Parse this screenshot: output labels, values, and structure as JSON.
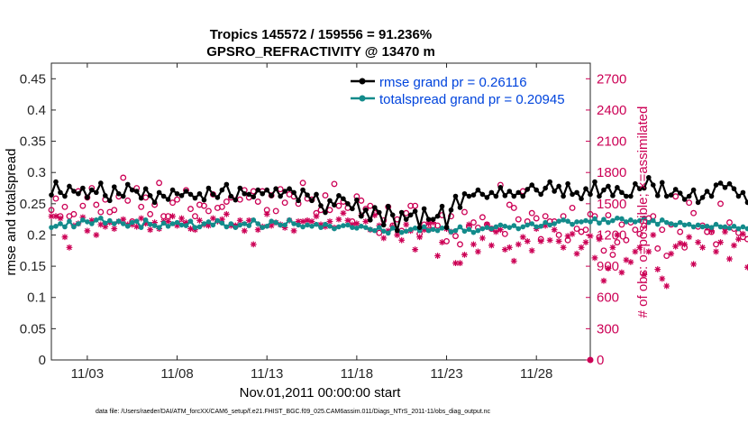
{
  "chart_data": {
    "type": "line",
    "title_line1": "Tropics 145572 / 159556 = 91.236%",
    "title_line2": "GPSRO_REFRACTIVITY @ 13470 m",
    "xlabel": "Nov.01,2011 00:00:00 start",
    "ylabel_left": "rmse and totalspread",
    "ylabel_right": "# of obs: o=possible; ×=assimilated",
    "footnote": "data file: /Users/raeder/DAI/ATM_forcXX/CAM6_setup/f.e21.FHIST_BGC.f09_025.CAM6assim.011/Diags_NTrS_2011-11/obs_diag_output.nc",
    "xlim": [
      1,
      31
    ],
    "x_ticks": [
      3,
      8,
      13,
      18,
      23,
      28
    ],
    "x_tick_labels": [
      "11/03",
      "11/08",
      "11/13",
      "11/18",
      "11/23",
      "11/28"
    ],
    "ylim_left": [
      0,
      0.475
    ],
    "y_ticks_left": [
      0,
      0.05,
      0.1,
      0.15,
      0.2,
      0.25,
      0.3,
      0.35,
      0.4,
      0.45
    ],
    "y_tick_labels_left": [
      "0",
      "0.05",
      "0.1",
      "0.15",
      "0.2",
      "0.25",
      "0.3",
      "0.35",
      "0.4",
      "0.45"
    ],
    "ylim_right": [
      0,
      2850
    ],
    "y_ticks_right": [
      0,
      300,
      600,
      900,
      1200,
      1500,
      1800,
      2100,
      2400,
      2700
    ],
    "y_tick_labels_right": [
      "0",
      "300",
      "600",
      "900",
      "1200",
      "1500",
      "1800",
      "2100",
      "2400",
      "2700"
    ],
    "legend": {
      "rmse_label": "rmse grand pr = 0.26116",
      "spread_label": "totalspread grand pr = 0.20945",
      "placement": "top-right"
    },
    "colors": {
      "rmse": "#000000",
      "spread": "#138b8b",
      "obs": "#cc0055",
      "axis": "#262626"
    },
    "x_start": 1.0,
    "x_step": 0.25,
    "series": [
      {
        "name": "rmse",
        "values": [
          0.264,
          0.285,
          0.268,
          0.262,
          0.278,
          0.27,
          0.266,
          0.275,
          0.26,
          0.272,
          0.268,
          0.283,
          0.263,
          0.255,
          0.277,
          0.266,
          0.262,
          0.281,
          0.272,
          0.27,
          0.259,
          0.274,
          0.263,
          0.252,
          0.268,
          0.262,
          0.257,
          0.272,
          0.266,
          0.263,
          0.27,
          0.265,
          0.259,
          0.266,
          0.256,
          0.275,
          0.265,
          0.26,
          0.272,
          0.281,
          0.262,
          0.256,
          0.275,
          0.266,
          0.265,
          0.261,
          0.272,
          0.266,
          0.272,
          0.263,
          0.274,
          0.262,
          0.27,
          0.274,
          0.268,
          0.255,
          0.272,
          0.264,
          0.255,
          0.265,
          0.247,
          0.236,
          0.255,
          0.248,
          0.263,
          0.258,
          0.25,
          0.242,
          0.256,
          0.23,
          0.24,
          0.224,
          0.244,
          0.236,
          0.216,
          0.246,
          0.232,
          0.207,
          0.236,
          0.225,
          0.232,
          0.238,
          0.212,
          0.242,
          0.225,
          0.225,
          0.23,
          0.246,
          0.212,
          0.24,
          0.262,
          0.244,
          0.266,
          0.262,
          0.264,
          0.272,
          0.265,
          0.26,
          0.268,
          0.262,
          0.276,
          0.263,
          0.27,
          0.262,
          0.268,
          0.262,
          0.273,
          0.28,
          0.272,
          0.265,
          0.275,
          0.285,
          0.27,
          0.278,
          0.262,
          0.282,
          0.265,
          0.268,
          0.258,
          0.274,
          0.265,
          0.285,
          0.262,
          0.272,
          0.278,
          0.263,
          0.276,
          0.268,
          0.262,
          0.262,
          0.282,
          0.274,
          0.275,
          0.292,
          0.28,
          0.263,
          0.284,
          0.262,
          0.264,
          0.273,
          0.267,
          0.257,
          0.262,
          0.272,
          0.252,
          0.26,
          0.27,
          0.262,
          0.28,
          0.283,
          0.276,
          0.282,
          0.274,
          0.262,
          0.268,
          0.252,
          0.265,
          0.26,
          0.256,
          0.265,
          0.266,
          0.25,
          0.244,
          0.235,
          0.236,
          0.242,
          0.252,
          0.265,
          0.245,
          0.262,
          0.253,
          0.268,
          0.262,
          0.274,
          0.258,
          0.262
        ]
      },
      {
        "name": "totalspread",
        "values": [
          0.212,
          0.214,
          0.218,
          0.213,
          0.222,
          0.213,
          0.218,
          0.224,
          0.221,
          0.218,
          0.224,
          0.227,
          0.219,
          0.223,
          0.218,
          0.222,
          0.218,
          0.214,
          0.22,
          0.222,
          0.212,
          0.224,
          0.217,
          0.215,
          0.212,
          0.219,
          0.214,
          0.218,
          0.22,
          0.216,
          0.215,
          0.222,
          0.212,
          0.213,
          0.218,
          0.221,
          0.216,
          0.223,
          0.219,
          0.213,
          0.218,
          0.212,
          0.216,
          0.218,
          0.215,
          0.224,
          0.218,
          0.212,
          0.214,
          0.222,
          0.22,
          0.216,
          0.216,
          0.224,
          0.218,
          0.216,
          0.213,
          0.216,
          0.214,
          0.217,
          0.212,
          0.217,
          0.214,
          0.21,
          0.213,
          0.215,
          0.216,
          0.212,
          0.211,
          0.214,
          0.212,
          0.209,
          0.207,
          0.212,
          0.206,
          0.203,
          0.211,
          0.208,
          0.204,
          0.206,
          0.209,
          0.211,
          0.207,
          0.213,
          0.207,
          0.209,
          0.207,
          0.211,
          0.213,
          0.205,
          0.207,
          0.213,
          0.206,
          0.209,
          0.204,
          0.207,
          0.21,
          0.212,
          0.21,
          0.213,
          0.216,
          0.214,
          0.212,
          0.215,
          0.21,
          0.213,
          0.216,
          0.218,
          0.213,
          0.214,
          0.22,
          0.216,
          0.218,
          0.222,
          0.224,
          0.222,
          0.217,
          0.221,
          0.221,
          0.223,
          0.221,
          0.226,
          0.219,
          0.225,
          0.22,
          0.223,
          0.227,
          0.226,
          0.221,
          0.224,
          0.221,
          0.223,
          0.227,
          0.22,
          0.223,
          0.217,
          0.224,
          0.22,
          0.218,
          0.216,
          0.22,
          0.216,
          0.217,
          0.213,
          0.216,
          0.213,
          0.214,
          0.212,
          0.217,
          0.213,
          0.213,
          0.211,
          0.214,
          0.21,
          0.213,
          0.21,
          0.212,
          0.208,
          0.211,
          0.207,
          0.21,
          0.206,
          0.211,
          0.206,
          0.208,
          0.208,
          0.21,
          0.205,
          0.208,
          0.21,
          0.206,
          0.205,
          0.209,
          0.211,
          0.21,
          0.205,
          0.208,
          0.21
        ]
      },
      {
        "name": "obs_possible",
        "values": [
          1440,
          1550,
          1380,
          1470,
          1380,
          1400,
          1620,
          1480,
          1560,
          1650,
          1490,
          1420,
          1540,
          1420,
          1440,
          1570,
          1750,
          1530,
          1330,
          1650,
          1470,
          1560,
          1400,
          1490,
          1700,
          1380,
          1380,
          1510,
          1540,
          1310,
          1630,
          1450,
          1380,
          1490,
          1480,
          1430,
          1590,
          1460,
          1470,
          1520,
          1560,
          1280,
          1540,
          1630,
          1560,
          1620,
          1520,
          1620,
          1440,
          1580,
          1430,
          1640,
          1510,
          1590,
          1570,
          1500,
          1700,
          1550,
          1540,
          1410,
          1440,
          1580,
          1440,
          1690,
          1480,
          1520,
          1460,
          1330,
          1570,
          1530,
          1450,
          1480,
          1410,
          1220,
          1340,
          1470,
          1290,
          1350,
          1240,
          1410,
          1480,
          1480,
          1210,
          1300,
          1250,
          1290,
          1290,
          1390,
          1140,
          1380,
          1190,
          1110,
          1420,
          1280,
          1320,
          1270,
          1370,
          1300,
          1260,
          1250,
          1680,
          1210,
          1490,
          1460,
          1350,
          1620,
          1330,
          1410,
          1360,
          1160,
          1380,
          1330,
          1330,
          1200,
          1380,
          1150,
          1460,
          1260,
          1230,
          1250,
          1400,
          1380,
          1180,
          1050,
          1390,
          1010,
          1130,
          1300,
          1150,
          1320,
          1250,
          1210,
          1290,
          1360,
          1380,
          1070,
          1250,
          1000,
          1300,
          1570,
          1230,
          1080,
          1510,
          1410,
          1280,
          1290,
          1230,
          1230,
          1110,
          1500,
          1270,
          1320,
          1260,
          1220,
          1180,
          1160,
          1420,
          1180,
          1110,
          1120,
          1400,
          1280,
          1440,
          1320,
          1330,
          1120,
          1160,
          1460,
          1550,
          1450,
          1560,
          1560,
          1280,
          1430,
          1440,
          1530,
          1620,
          1550,
          1730,
          1670,
          1830,
          1580
        ]
      },
      {
        "name": "obs_assimilated",
        "values": [
          1380,
          1380,
          1360,
          1180,
          1080,
          1290,
          1310,
          1370,
          1240,
          1340,
          1200,
          1300,
          1280,
          1320,
          1260,
          1330,
          1350,
          1300,
          1300,
          1280,
          1360,
          1310,
          1250,
          1320,
          1260,
          1330,
          1330,
          1380,
          1290,
          1360,
          1320,
          1260,
          1250,
          1340,
          1300,
          1290,
          1360,
          1330,
          1350,
          1400,
          1290,
          1290,
          1340,
          1240,
          1340,
          1110,
          1250,
          1280,
          1400,
          1290,
          1320,
          1300,
          1270,
          1340,
          1240,
          1330,
          1330,
          1340,
          1330,
          1380,
          1300,
          1280,
          1330,
          1270,
          1350,
          1410,
          1340,
          1300,
          1310,
          1390,
          1330,
          1250,
          1390,
          1290,
          1170,
          1240,
          1280,
          1200,
          1150,
          1300,
          1240,
          1060,
          1180,
          1250,
          1310,
          1320,
          1000,
          1130,
          1260,
          1230,
          930,
          930,
          1010,
          1300,
          1110,
          1040,
          1170,
          1300,
          1100,
          1230,
          1250,
          1060,
          1080,
          950,
          1110,
          1180,
          1140,
          1050,
          1260,
          1140,
          1290,
          1150,
          1250,
          1140,
          1080,
          1190,
          1210,
          1020,
          1080,
          1130,
          1190,
          980,
          1160,
          760,
          880,
          1080,
          1200,
          840,
          960,
          940,
          1040,
          1080,
          820,
          1040,
          1200,
          870,
          780,
          710,
          1020,
          1090,
          1120,
          1110,
          1180,
          920,
          1130,
          1080,
          1270,
          1240,
          1040,
          1130,
          1230,
          970,
          1100,
          1160,
          1210,
          890,
          1150,
          1180,
          950,
          1200,
          1060,
          1040,
          970,
          1160,
          930,
          1190,
          1040,
          1260,
          1180,
          1070,
          1100,
          1160,
          1210,
          1350,
          1490,
          1230,
          1360,
          1440,
          1290,
          1520,
          1480,
          1500
        ]
      }
    ],
    "final_obs_marker_value": 0
  }
}
